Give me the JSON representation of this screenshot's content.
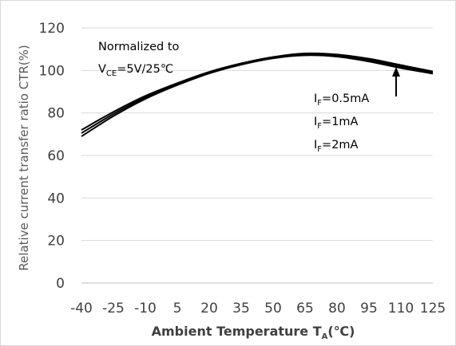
{
  "chart_data": {
    "type": "line",
    "xlabel": "Ambient Temperature T",
    "xlabel_subscript": "A",
    "xlabel_unit": "(℃)",
    "ylabel": "Relative current transfer ratio CTR(%)",
    "xlim": [
      -40,
      125
    ],
    "ylim": [
      0,
      120
    ],
    "x_ticks": [
      -40,
      -25,
      -10,
      5,
      20,
      35,
      50,
      65,
      80,
      95,
      110,
      125
    ],
    "y_ticks": [
      0,
      20,
      40,
      60,
      80,
      100,
      120
    ],
    "grid": "horizontal",
    "series": [
      {
        "name": "I_F=0.5mA",
        "x": [
          -40,
          -25,
          -10,
          5,
          20,
          35,
          50,
          65,
          80,
          95,
          110,
          125
        ],
        "y": [
          72,
          80.5,
          88,
          94,
          99.3,
          103.3,
          106.3,
          108,
          107.5,
          105.5,
          102.5,
          99.5
        ]
      },
      {
        "name": "I_F=1mA",
        "x": [
          -40,
          -25,
          -10,
          5,
          20,
          35,
          50,
          65,
          80,
          95,
          110,
          125
        ],
        "y": [
          70.5,
          79.5,
          87.3,
          93.6,
          99,
          103,
          106,
          107.6,
          107,
          104.8,
          101.8,
          99
        ]
      },
      {
        "name": "I_F=2mA",
        "x": [
          -40,
          -25,
          -10,
          5,
          20,
          35,
          50,
          65,
          80,
          95,
          110,
          125
        ],
        "y": [
          69,
          78.5,
          86.6,
          93.1,
          98.6,
          102.7,
          105.7,
          107.1,
          106.5,
          104.2,
          101.1,
          98.5
        ]
      }
    ],
    "annotations": {
      "normalized_line1": "Normalized to",
      "normalized_v": "V",
      "normalized_sub": "CE",
      "normalized_rest": "=5V/25℃",
      "legend": [
        {
          "main": "I",
          "sub": "F",
          "rest": "=0.5mA"
        },
        {
          "main": "I",
          "sub": "F",
          "rest": "=1mA"
        },
        {
          "main": "I",
          "sub": "F",
          "rest": "=2mA"
        }
      ],
      "arrow_x": 110
    },
    "colors": {
      "line": "#000000",
      "grid": "#d9d9d9",
      "axis": "#bfbfbf",
      "text": "#404040"
    }
  }
}
